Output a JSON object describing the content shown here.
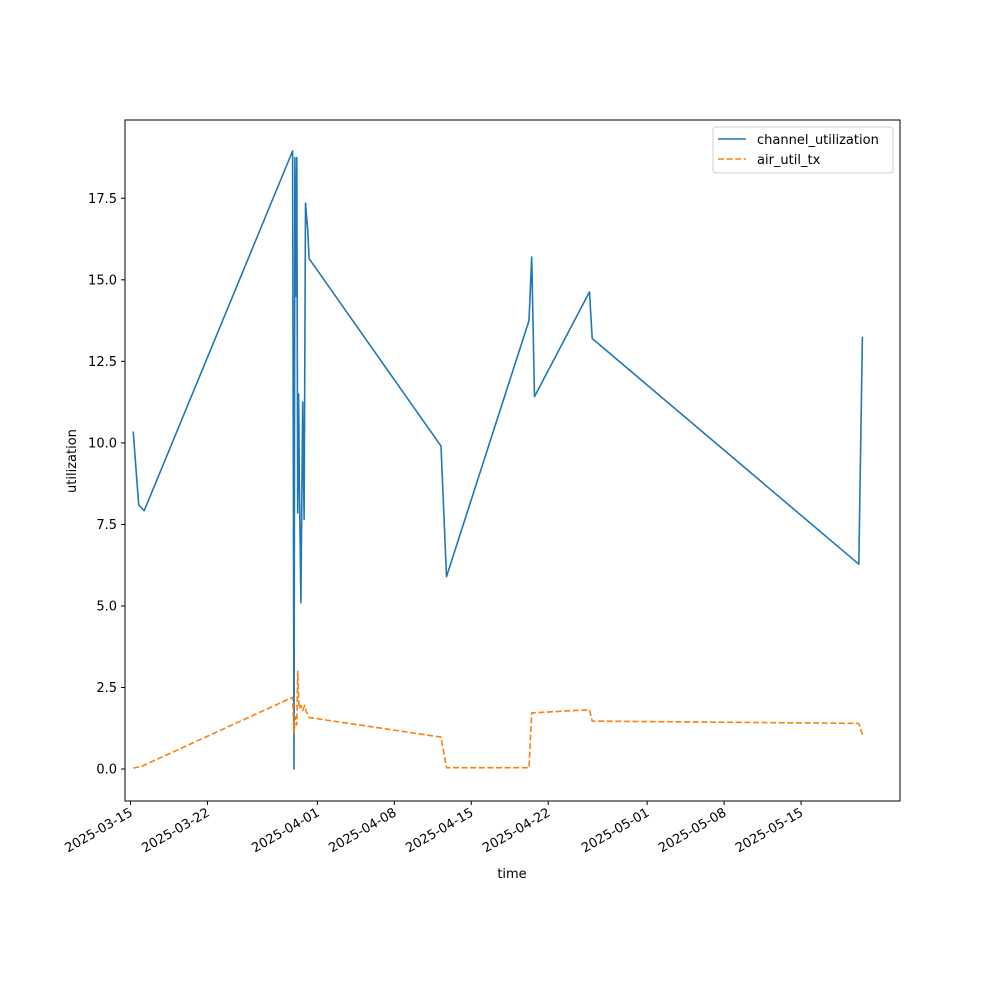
{
  "chart_data": {
    "type": "line",
    "title": "",
    "xlabel": "time",
    "ylabel": "utilization",
    "x_axis": {
      "type": "date",
      "range": [
        "2025-03-14T12:00",
        "2025-05-24T00:00"
      ],
      "ticks": [
        "2025-03-15",
        "2025-03-22",
        "2025-04-01",
        "2025-04-08",
        "2025-04-15",
        "2025-04-22",
        "2025-05-01",
        "2025-05-08",
        "2025-05-15"
      ]
    },
    "y_axis": {
      "range": [
        -0.98,
        19.9
      ],
      "ticks": [
        "0.0",
        "2.5",
        "5.0",
        "7.5",
        "10.0",
        "12.5",
        "15.0",
        "17.5"
      ]
    },
    "grid": false,
    "legend": {
      "placement": "top-right"
    },
    "series": [
      {
        "name": "channel_utilization",
        "color": "#1f77b4",
        "style": "solid",
        "points": [
          [
            "2025-03-15T06:00",
            10.35
          ],
          [
            "2025-03-15T18:00",
            8.1
          ],
          [
            "2025-03-16T06:00",
            7.92
          ],
          [
            "2025-03-29T18:00",
            18.95
          ],
          [
            "2025-03-29T21:00",
            0.0
          ],
          [
            "2025-03-29T23:00",
            18.75
          ],
          [
            "2025-03-30T01:00",
            14.5
          ],
          [
            "2025-03-30T03:00",
            18.75
          ],
          [
            "2025-03-30T05:00",
            7.85
          ],
          [
            "2025-03-30T07:00",
            11.5
          ],
          [
            "2025-03-30T09:00",
            8.5
          ],
          [
            "2025-03-30T12:00",
            5.1
          ],
          [
            "2025-03-30T16:00",
            11.25
          ],
          [
            "2025-03-30T19:00",
            7.65
          ],
          [
            "2025-03-30T22:00",
            17.35
          ],
          [
            "2025-03-31T03:00",
            16.5
          ],
          [
            "2025-03-31T06:00",
            15.65
          ],
          [
            "2025-04-12T06:00",
            9.9
          ],
          [
            "2025-04-12T18:00",
            5.9
          ],
          [
            "2025-04-20T06:00",
            13.75
          ],
          [
            "2025-04-20T12:00",
            15.7
          ],
          [
            "2025-04-20T18:00",
            11.42
          ],
          [
            "2025-04-25T18:00",
            14.63
          ],
          [
            "2025-04-26T00:00",
            13.2
          ],
          [
            "2025-05-20T06:00",
            6.28
          ],
          [
            "2025-05-20T14:00",
            13.25
          ]
        ]
      },
      {
        "name": "air_util_tx",
        "color": "#ff7f0e",
        "style": "dashed",
        "points": [
          [
            "2025-03-15T06:00",
            0.03
          ],
          [
            "2025-03-16T00:00",
            0.08
          ],
          [
            "2025-03-29T18:00",
            2.2
          ],
          [
            "2025-03-29T21:00",
            1.1
          ],
          [
            "2025-03-30T00:00",
            1.6
          ],
          [
            "2025-03-30T03:00",
            1.35
          ],
          [
            "2025-03-30T05:00",
            3.0
          ],
          [
            "2025-03-30T08:00",
            1.85
          ],
          [
            "2025-03-30T12:00",
            1.95
          ],
          [
            "2025-03-30T16:00",
            1.8
          ],
          [
            "2025-03-30T20:00",
            1.95
          ],
          [
            "2025-03-31T00:00",
            1.75
          ],
          [
            "2025-03-31T06:00",
            1.58
          ],
          [
            "2025-04-12T06:00",
            0.98
          ],
          [
            "2025-04-12T18:00",
            0.04
          ],
          [
            "2025-04-20T06:00",
            0.04
          ],
          [
            "2025-04-20T12:00",
            1.72
          ],
          [
            "2025-04-25T18:00",
            1.82
          ],
          [
            "2025-04-26T00:00",
            1.47
          ],
          [
            "2025-05-20T06:00",
            1.4
          ],
          [
            "2025-05-20T14:00",
            1.05
          ]
        ]
      }
    ]
  }
}
